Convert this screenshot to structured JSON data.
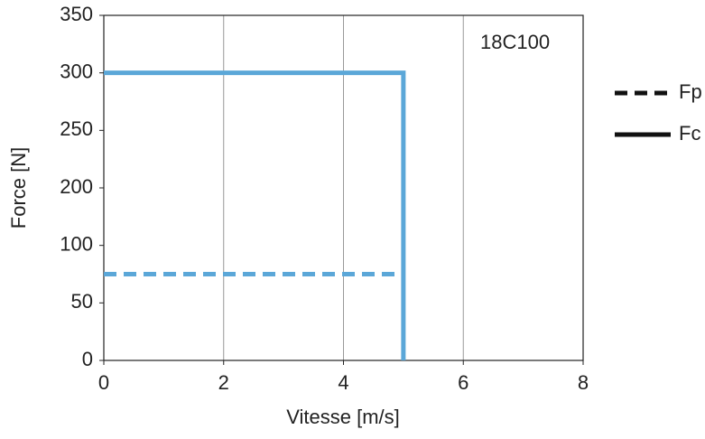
{
  "chart_data": {
    "type": "line",
    "annotation": "18C100",
    "x_label": "Vitesse [m/s]",
    "y_label": "Force [N]",
    "xlim": [
      0,
      8
    ],
    "xticks": [
      0,
      2,
      4,
      6,
      8
    ],
    "ylim": [
      0,
      350
    ],
    "yticks": [
      0,
      50,
      100,
      200,
      250,
      300,
      350
    ],
    "grid": true,
    "series": [
      {
        "name": "Fp",
        "color": "#5ba7d8",
        "dash": true,
        "x": [
          0,
          5
        ],
        "values": [
          75,
          75
        ]
      },
      {
        "name": "Fc",
        "color": "#5ba7d8",
        "dash": false,
        "x": [
          0,
          5,
          5
        ],
        "values": [
          300,
          300,
          0
        ]
      }
    ]
  }
}
